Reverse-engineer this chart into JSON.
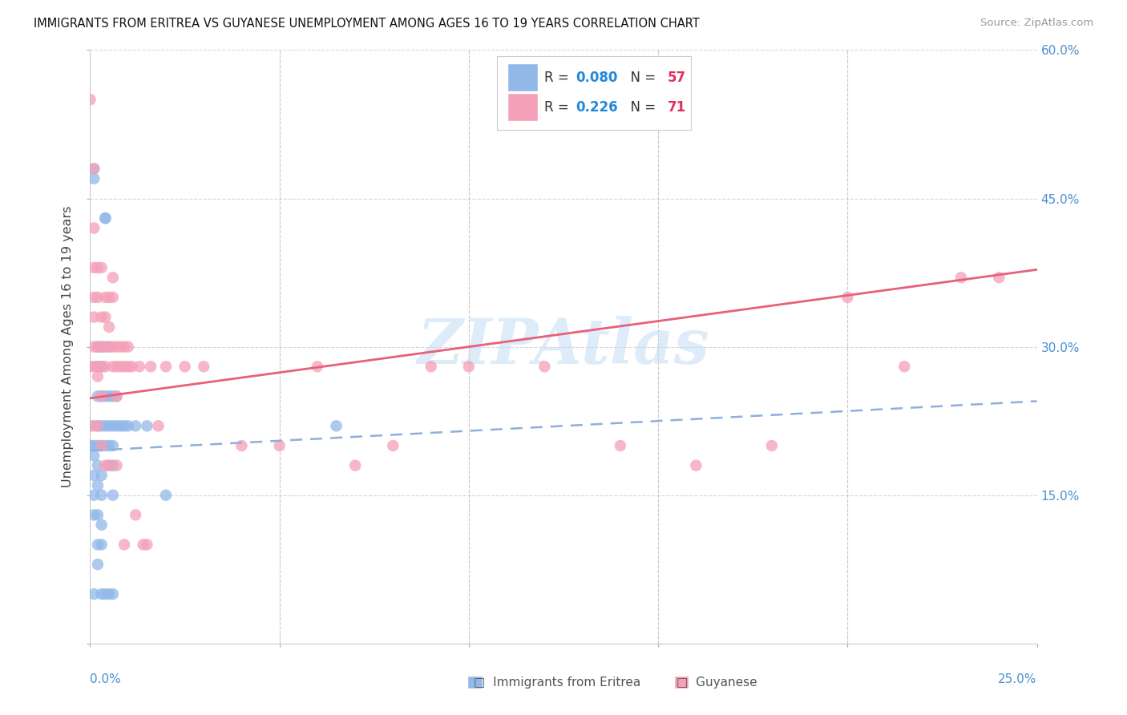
{
  "title": "IMMIGRANTS FROM ERITREA VS GUYANESE UNEMPLOYMENT AMONG AGES 16 TO 19 YEARS CORRELATION CHART",
  "source": "Source: ZipAtlas.com",
  "ylabel": "Unemployment Among Ages 16 to 19 years",
  "color_eritrea": "#92b8e8",
  "color_guyanese": "#f4a0b8",
  "color_eritrea_line": "#90aedd",
  "color_guyanese_line": "#e8607a",
  "color_right_labels": "#4a90d0",
  "color_legend_R": "#2288d8",
  "color_legend_N": "#dd3060",
  "watermark": "ZIPAtlas",
  "watermark_color": "#c8dff5",
  "background_color": "#ffffff",
  "xmin": 0.0,
  "xmax": 0.25,
  "ymin": 0.0,
  "ymax": 0.6,
  "R_eritrea": 0.08,
  "N_eritrea": 57,
  "R_guyanese": 0.226,
  "N_guyanese": 71,
  "eritrea_x": [
    0.0,
    0.0,
    0.001,
    0.001,
    0.001,
    0.001,
    0.001,
    0.001,
    0.001,
    0.001,
    0.002,
    0.002,
    0.002,
    0.002,
    0.002,
    0.002,
    0.002,
    0.002,
    0.002,
    0.002,
    0.003,
    0.003,
    0.003,
    0.003,
    0.003,
    0.003,
    0.003,
    0.003,
    0.003,
    0.003,
    0.004,
    0.004,
    0.004,
    0.004,
    0.004,
    0.004,
    0.005,
    0.005,
    0.005,
    0.005,
    0.005,
    0.005,
    0.006,
    0.006,
    0.006,
    0.006,
    0.006,
    0.006,
    0.007,
    0.007,
    0.008,
    0.009,
    0.01,
    0.012,
    0.015,
    0.02,
    0.065
  ],
  "eritrea_y": [
    0.2,
    0.22,
    0.48,
    0.47,
    0.2,
    0.19,
    0.17,
    0.15,
    0.13,
    0.05,
    0.3,
    0.28,
    0.25,
    0.22,
    0.2,
    0.18,
    0.16,
    0.13,
    0.1,
    0.08,
    0.3,
    0.28,
    0.25,
    0.22,
    0.2,
    0.17,
    0.15,
    0.12,
    0.1,
    0.05,
    0.43,
    0.43,
    0.25,
    0.22,
    0.2,
    0.05,
    0.3,
    0.25,
    0.22,
    0.2,
    0.18,
    0.05,
    0.25,
    0.22,
    0.2,
    0.18,
    0.15,
    0.05,
    0.25,
    0.22,
    0.22,
    0.22,
    0.22,
    0.22,
    0.22,
    0.15,
    0.22
  ],
  "guyanese_x": [
    0.0,
    0.0,
    0.001,
    0.001,
    0.001,
    0.001,
    0.001,
    0.001,
    0.001,
    0.001,
    0.002,
    0.002,
    0.002,
    0.002,
    0.002,
    0.002,
    0.003,
    0.003,
    0.003,
    0.003,
    0.003,
    0.003,
    0.004,
    0.004,
    0.004,
    0.004,
    0.004,
    0.005,
    0.005,
    0.005,
    0.005,
    0.006,
    0.006,
    0.006,
    0.006,
    0.007,
    0.007,
    0.007,
    0.007,
    0.008,
    0.008,
    0.009,
    0.009,
    0.009,
    0.01,
    0.01,
    0.011,
    0.012,
    0.013,
    0.014,
    0.015,
    0.016,
    0.018,
    0.02,
    0.025,
    0.03,
    0.04,
    0.05,
    0.06,
    0.07,
    0.08,
    0.09,
    0.1,
    0.12,
    0.14,
    0.16,
    0.18,
    0.2,
    0.215,
    0.23,
    0.24
  ],
  "guyanese_y": [
    0.28,
    0.55,
    0.48,
    0.42,
    0.38,
    0.35,
    0.33,
    0.3,
    0.28,
    0.22,
    0.38,
    0.35,
    0.3,
    0.28,
    0.27,
    0.22,
    0.38,
    0.33,
    0.3,
    0.28,
    0.25,
    0.2,
    0.35,
    0.33,
    0.3,
    0.28,
    0.18,
    0.35,
    0.32,
    0.3,
    0.18,
    0.37,
    0.35,
    0.3,
    0.28,
    0.3,
    0.28,
    0.25,
    0.18,
    0.3,
    0.28,
    0.3,
    0.28,
    0.1,
    0.3,
    0.28,
    0.28,
    0.13,
    0.28,
    0.1,
    0.1,
    0.28,
    0.22,
    0.28,
    0.28,
    0.28,
    0.2,
    0.2,
    0.28,
    0.18,
    0.2,
    0.28,
    0.28,
    0.28,
    0.2,
    0.18,
    0.2,
    0.35,
    0.28,
    0.37,
    0.37
  ]
}
